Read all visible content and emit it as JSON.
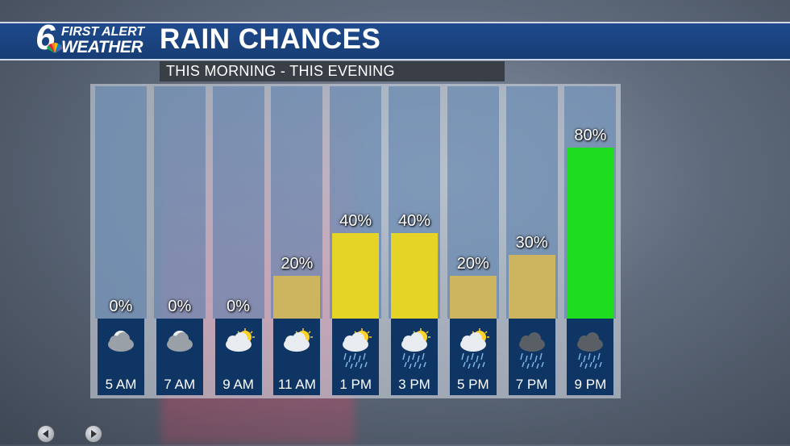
{
  "header": {
    "logo_number": "6",
    "logo_line1": "FIRST ALERT",
    "logo_line2": "WEATHER",
    "title": "RAIN CHANCES",
    "subtitle": "THIS MORNING - THIS EVENING"
  },
  "colors": {
    "header_blue": "#1e4a8c",
    "track_blue": "#5078aa",
    "foot_blue": "#0e3563",
    "bar_low": "#cdb45e",
    "bar_mid": "#e5d325",
    "bar_high": "#1edc1e"
  },
  "chart_data": {
    "type": "bar",
    "categories": [
      "5 AM",
      "7 AM",
      "9 AM",
      "11 AM",
      "1 PM",
      "3 PM",
      "5 PM",
      "7 PM",
      "9 PM"
    ],
    "values": [
      0,
      0,
      0,
      20,
      40,
      40,
      20,
      30,
      80
    ],
    "labels": [
      "0%",
      "0%",
      "0%",
      "20%",
      "40%",
      "40%",
      "20%",
      "30%",
      "80%"
    ],
    "icons": [
      "partly-cloudy-night-icon",
      "partly-cloudy-night-icon",
      "partly-sunny-icon",
      "partly-sunny-icon",
      "sun-showers-icon",
      "sun-showers-icon",
      "sun-showers-icon",
      "rain-cloud-icon",
      "rain-cloud-icon"
    ],
    "ylim": [
      0,
      100
    ],
    "unit": "%",
    "legend": "none"
  },
  "navigation": {
    "prev_icon": "triangle-left-icon",
    "next_icon": "triangle-right-icon"
  }
}
